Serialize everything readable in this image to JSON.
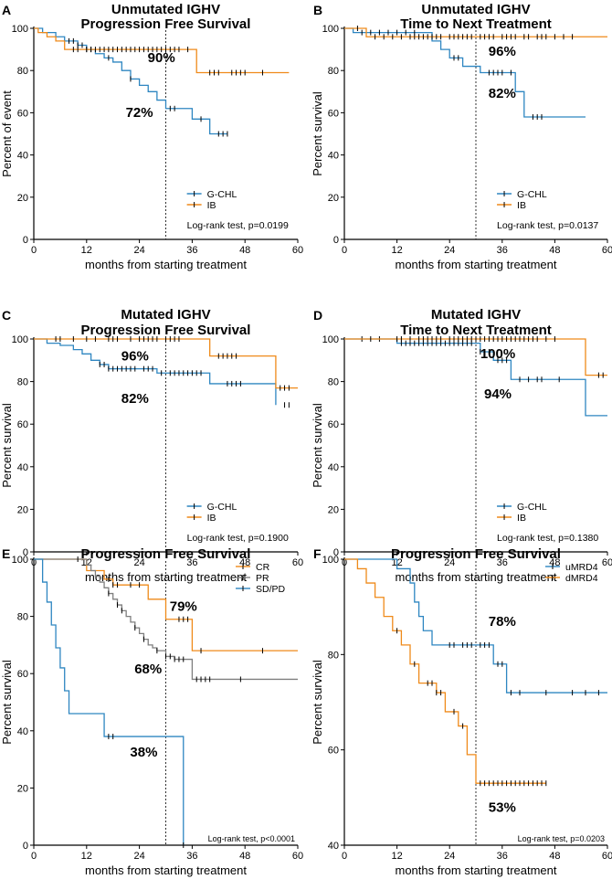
{
  "figure": {
    "description_panels": [
      "A",
      "B",
      "C",
      "D",
      "E",
      "F"
    ]
  },
  "colors": {
    "blue": "#2e86c1",
    "orange": "#ef8a1a",
    "gray": "#7f7f7f",
    "axis": "#000000"
  },
  "chart_data": [
    {
      "panel": "A",
      "type": "line",
      "step": true,
      "title": [
        "Unmutated IGHV",
        "Progression Free Survival"
      ],
      "xlabel": "months from starting treatment",
      "ylabel": "Percent of event",
      "xlim": [
        0,
        60
      ],
      "ylim": [
        0,
        100
      ],
      "xticks": [
        0,
        12,
        24,
        36,
        48,
        60
      ],
      "yticks": [
        0,
        20,
        40,
        60,
        80,
        100
      ],
      "vline_x": 30,
      "legend": "bottom-right",
      "test": "Log-rank test, p=0.0199",
      "series": [
        {
          "name": "G-CHL",
          "color": "blue",
          "x": [
            0,
            2,
            5,
            7,
            10,
            12,
            14,
            16,
            18,
            20,
            22,
            24,
            26,
            28,
            30,
            32,
            36,
            40,
            44
          ],
          "y": [
            100,
            98,
            96,
            94,
            92,
            90,
            88,
            86,
            84,
            80,
            76,
            73,
            70,
            66,
            62,
            62,
            57,
            50,
            50
          ],
          "censors": [
            8,
            9,
            10,
            11,
            12,
            13,
            17,
            22,
            31,
            32,
            38,
            42,
            43,
            44
          ]
        },
        {
          "name": "IB",
          "color": "orange",
          "x": [
            0,
            1,
            3,
            5,
            7,
            37,
            58
          ],
          "y": [
            100,
            98,
            96,
            94,
            90,
            79,
            79
          ],
          "censors": [
            9,
            10,
            12,
            13,
            14,
            15,
            16,
            17,
            18,
            19,
            20,
            21,
            22,
            23,
            24,
            25,
            26,
            27,
            28,
            29,
            30,
            31,
            32,
            33,
            35,
            40,
            41,
            42,
            45,
            46,
            47,
            48,
            52
          ]
        }
      ],
      "annotations": [
        {
          "text": "90%",
          "x": 29,
          "y": 84
        },
        {
          "text": "72%",
          "x": 24,
          "y": 58
        }
      ]
    },
    {
      "panel": "B",
      "type": "line",
      "step": true,
      "title": [
        "Unmutated IGHV",
        "Time to Next Treatment"
      ],
      "xlabel": "months from starting treatment",
      "ylabel": "Percent survival",
      "xlim": [
        0,
        60
      ],
      "ylim": [
        0,
        100
      ],
      "xticks": [
        0,
        12,
        24,
        36,
        48,
        60
      ],
      "yticks": [
        0,
        20,
        40,
        60,
        80,
        100
      ],
      "vline_x": 30,
      "legend": "bottom-right",
      "test": "Log-rank test, p=0.0137",
      "series": [
        {
          "name": "G-CHL",
          "color": "blue",
          "x": [
            0,
            2,
            18,
            20,
            22,
            24,
            27,
            31,
            39,
            41,
            55
          ],
          "y": [
            100,
            98,
            98,
            94,
            90,
            86,
            82,
            79,
            70,
            58,
            58
          ],
          "censors": [
            4,
            6,
            8,
            10,
            12,
            14,
            16,
            25,
            26,
            33,
            34,
            35,
            36,
            38,
            43,
            44,
            45
          ]
        },
        {
          "name": "IB",
          "color": "orange",
          "x": [
            0,
            5,
            60
          ],
          "y": [
            100,
            96,
            96
          ],
          "censors": [
            3,
            7,
            9,
            11,
            13,
            15,
            16,
            17,
            18,
            19,
            20,
            21,
            22,
            24,
            25,
            26,
            27,
            28,
            29,
            31,
            32,
            33,
            34,
            36,
            37,
            38,
            39,
            41,
            42,
            44,
            45,
            46,
            48,
            50,
            52
          ]
        }
      ],
      "annotations": [
        {
          "text": "96%",
          "x": 36,
          "y": 87
        },
        {
          "text": "82%",
          "x": 36,
          "y": 67
        }
      ]
    },
    {
      "panel": "C",
      "type": "line",
      "step": true,
      "title": [
        "Mutated IGHV",
        "Progression Free Survival"
      ],
      "xlabel": "months from starting treatment",
      "ylabel": "Percent survival",
      "xlim": [
        0,
        60
      ],
      "ylim": [
        0,
        100
      ],
      "xticks": [
        0,
        12,
        24,
        36,
        48,
        60
      ],
      "yticks": [
        0,
        20,
        40,
        60,
        80,
        100
      ],
      "vline_x": 30,
      "legend": "bottom-right",
      "test": "Log-rank test, p=0.1900",
      "series": [
        {
          "name": "G-CHL",
          "color": "blue",
          "x": [
            0,
            3,
            6,
            9,
            11,
            13,
            15,
            17,
            24,
            28,
            40,
            48,
            55
          ],
          "y": [
            100,
            98,
            97,
            95,
            93,
            90,
            88,
            86,
            86,
            84,
            79,
            79,
            69
          ],
          "censors": [
            15,
            16,
            17,
            18,
            19,
            20,
            21,
            22,
            23,
            25,
            26,
            27,
            29,
            31,
            32,
            33,
            34,
            35,
            36,
            37,
            38,
            44,
            45,
            46,
            47,
            57,
            58
          ]
        },
        {
          "name": "IB",
          "color": "orange",
          "x": [
            0,
            40,
            55,
            60
          ],
          "y": [
            100,
            92,
            77,
            77
          ],
          "censors": [
            5,
            6,
            9,
            12,
            14,
            17,
            18,
            19,
            22,
            24,
            25,
            26,
            27,
            28,
            30,
            31,
            32,
            33,
            42,
            43,
            44,
            45,
            46,
            56,
            57,
            58
          ]
        }
      ],
      "annotations": [
        {
          "text": "96%",
          "x": 23,
          "y": 90
        },
        {
          "text": "82%",
          "x": 23,
          "y": 70
        }
      ]
    },
    {
      "panel": "D",
      "type": "line",
      "step": true,
      "title": [
        "Mutated IGHV",
        "Time to Next Treatment"
      ],
      "xlabel": "months from starting treatment",
      "ylabel": "Percent survival",
      "xlim": [
        0,
        60
      ],
      "ylim": [
        0,
        100
      ],
      "xticks": [
        0,
        12,
        24,
        36,
        48,
        60
      ],
      "yticks": [
        0,
        20,
        40,
        60,
        80,
        100
      ],
      "vline_x": 30,
      "legend": "bottom-right",
      "test": "Log-rank test, p=0.1380",
      "series": [
        {
          "name": "G-CHL",
          "color": "blue",
          "x": [
            0,
            12,
            31,
            34,
            38,
            55,
            60
          ],
          "y": [
            100,
            98,
            94,
            90,
            81,
            64,
            64
          ],
          "censors": [
            4,
            8,
            13,
            14,
            15,
            16,
            17,
            18,
            19,
            20,
            21,
            22,
            23,
            24,
            25,
            26,
            27,
            28,
            29,
            31,
            32,
            33,
            35,
            36,
            37,
            40,
            42,
            44,
            45,
            49
          ]
        },
        {
          "name": "IB",
          "color": "orange",
          "x": [
            0,
            55,
            60
          ],
          "y": [
            100,
            83,
            83
          ],
          "censors": [
            6,
            12,
            13,
            15,
            17,
            18,
            19,
            20,
            21,
            22,
            24,
            25,
            26,
            27,
            28,
            29,
            30,
            31,
            32,
            33,
            34,
            35,
            36,
            37,
            38,
            39,
            40,
            41,
            42,
            43,
            44,
            46,
            48,
            58,
            59
          ]
        }
      ],
      "annotations": [
        {
          "text": "100%",
          "x": 35,
          "y": 91
        },
        {
          "text": "94%",
          "x": 35,
          "y": 72
        }
      ]
    },
    {
      "panel": "E",
      "type": "line",
      "step": true,
      "title": [
        "Progression Free Survival"
      ],
      "xlabel": "months from starting treatment",
      "ylabel": "Percent survival",
      "xlim": [
        0,
        60
      ],
      "ylim": [
        0,
        100
      ],
      "xticks": [
        0,
        12,
        24,
        36,
        48,
        60
      ],
      "yticks": [
        0,
        20,
        40,
        60,
        80,
        100
      ],
      "vline_x": 30,
      "legend": "top-right",
      "test": "Log-rank test, p<0.0001",
      "series": [
        {
          "name": "CR",
          "color": "orange",
          "x": [
            0,
            12,
            16,
            18,
            26,
            30,
            36,
            60
          ],
          "y": [
            100,
            96,
            93,
            91,
            86,
            79,
            68,
            68
          ],
          "censors": [
            17,
            18,
            19,
            22,
            24,
            33,
            34,
            35,
            38,
            52
          ]
        },
        {
          "name": "PR",
          "color": "gray",
          "x": [
            0,
            12,
            13,
            14,
            15,
            16,
            17,
            18,
            19,
            20,
            21,
            22,
            23,
            24,
            25,
            26,
            27,
            28,
            30,
            32,
            36,
            60
          ],
          "y": [
            100,
            98,
            96,
            94,
            92,
            90,
            88,
            86,
            84,
            82,
            80,
            78,
            76,
            74,
            72,
            70,
            69,
            68,
            66,
            65,
            58,
            58
          ],
          "censors": [
            10,
            17,
            19,
            20,
            23,
            25,
            28,
            30,
            31,
            32,
            33,
            34,
            37,
            38,
            39,
            40,
            47
          ]
        },
        {
          "name": "SD/PD",
          "color": "blue",
          "x": [
            0,
            2,
            3,
            4,
            5,
            6,
            7,
            8,
            10,
            12,
            16,
            34,
            34
          ],
          "y": [
            100,
            92,
            85,
            77,
            69,
            62,
            54,
            46,
            46,
            46,
            38,
            38,
            0
          ],
          "censors": [
            17,
            18,
            34
          ]
        }
      ],
      "annotations": [
        {
          "text": "79%",
          "x": 34,
          "y": 82
        },
        {
          "text": "68%",
          "x": 26,
          "y": 60
        },
        {
          "text": "38%",
          "x": 25,
          "y": 31
        }
      ]
    },
    {
      "panel": "F",
      "type": "line",
      "step": true,
      "title": [
        "Progression Free Survival"
      ],
      "xlabel": "months from starting treatment",
      "ylabel": "Percent survival",
      "xlim": [
        0,
        60
      ],
      "ylim": [
        40,
        100
      ],
      "xticks": [
        0,
        12,
        24,
        36,
        48,
        60
      ],
      "yticks": [
        40,
        60,
        80,
        100
      ],
      "vline_x": 30,
      "legend": "top-right",
      "test": "Log-rank test, p=0.0203",
      "series": [
        {
          "name": "uMRD4",
          "color": "blue",
          "x": [
            0,
            12,
            15,
            16,
            17,
            18,
            20,
            34,
            37,
            60
          ],
          "y": [
            100,
            98,
            95,
            91,
            88,
            85,
            82,
            78,
            72,
            72
          ],
          "censors": [
            24,
            25,
            27,
            28,
            29,
            31,
            32,
            33,
            35,
            36,
            38,
            40,
            46,
            52,
            55,
            58
          ]
        },
        {
          "name": "dMRD4",
          "color": "orange",
          "x": [
            0,
            3,
            5,
            7,
            9,
            11,
            13,
            15,
            17,
            21,
            23,
            26,
            28,
            30,
            46
          ],
          "y": [
            100,
            98,
            95,
            92,
            88,
            85,
            82,
            78,
            74,
            72,
            68,
            65,
            59,
            53,
            53
          ],
          "censors": [
            12,
            16,
            19,
            20,
            21,
            22,
            25,
            27,
            31,
            32,
            33,
            34,
            35,
            36,
            37,
            38,
            39,
            40,
            41,
            42,
            43,
            44,
            45,
            46
          ]
        }
      ],
      "annotations": [
        {
          "text": "78%",
          "x": 36,
          "y": 86
        },
        {
          "text": "53%",
          "x": 36,
          "y": 47
        }
      ]
    }
  ]
}
